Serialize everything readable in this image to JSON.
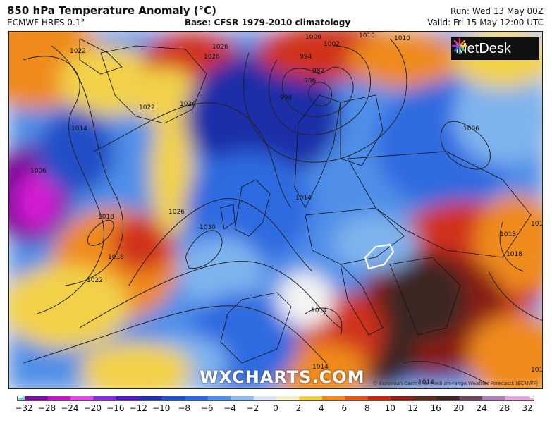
{
  "header": {
    "title": "850 hPa Temperature Anomaly (°C)",
    "model": "ECMWF HRES 0.1°",
    "base": "Base: CFSR 1979-2010 climatology",
    "run": "Run: Wed 13 May 00Z",
    "valid": "Valid: Fri 15 May 12:00 UTC"
  },
  "logo": {
    "text": "MetDesk"
  },
  "watermark": "WXCHARTS.COM",
  "copyright": "© European Centre for Medium-range Weather Forecasts (ECMWF)",
  "isobars": [
    "1022",
    "1014",
    "1018",
    "1006",
    "1022",
    "1026",
    "1030",
    "1026",
    "1022",
    "1018",
    "1014",
    "1014",
    "1018",
    "1010",
    "994",
    "1002",
    "1006",
    "1010",
    "986",
    "998",
    "982",
    "1006",
    "1018",
    "1018",
    "1014",
    "1014",
    "1026",
    "1026",
    "1014"
  ],
  "colors": {
    "deep_purple": "#7a0a9a",
    "magenta": "#d41ad4",
    "dark_blue": "#1e2fa8",
    "blue": "#2f6be0",
    "light_blue": "#7fb3ee",
    "white": "#f4f4f4",
    "yellow": "#f2d14a",
    "orange": "#ef8a1f",
    "red": "#d0331a",
    "dark_red": "#8a1e14",
    "brown_black": "#3a2620",
    "land_outline": "#111111",
    "isobar": "#222222"
  },
  "colorbar": {
    "ticks": [
      "−32",
      "−28",
      "−24",
      "−20",
      "−16",
      "−12",
      "−10",
      "−8",
      "−6",
      "−4",
      "−2",
      "0",
      "2",
      "4",
      "6",
      "8",
      "10",
      "12",
      "16",
      "20",
      "24",
      "28",
      "32"
    ],
    "colors": [
      "#5fe0b8",
      "#7a0a9a",
      "#c21ac2",
      "#e04ae0",
      "#8a2be2",
      "#4a1ab8",
      "#1e2fa8",
      "#2450c8",
      "#2f6be0",
      "#4f8fe8",
      "#8fbaf0",
      "#d8e6f6",
      "#f6f0c8",
      "#f2d14a",
      "#ef8a1f",
      "#e0571c",
      "#c22a14",
      "#8a1e14",
      "#5a2a22",
      "#3a2620",
      "#6a4a60",
      "#b080b8",
      "#e8a8d8"
    ]
  }
}
